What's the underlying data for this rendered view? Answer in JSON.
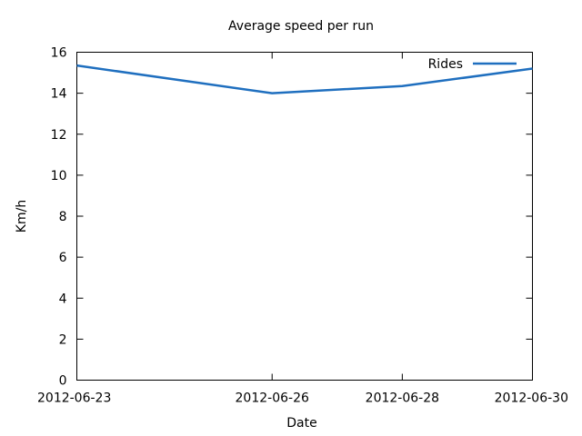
{
  "chart_data": {
    "type": "line",
    "title": "Average speed per run",
    "xlabel": "Date",
    "ylabel": "Km/h",
    "x_ticks": [
      "2012-06-23",
      "2012-06-26",
      "2012-06-28",
      "2012-06-30"
    ],
    "xlim": [
      "2012-06-23",
      "2012-06-30"
    ],
    "ylim": [
      0,
      16
    ],
    "y_ticks": [
      0,
      2,
      4,
      6,
      8,
      10,
      12,
      14,
      16
    ],
    "grid": false,
    "legend_position": "top-right",
    "series": [
      {
        "name": "Rides",
        "color": "#1f6fbf",
        "points": [
          {
            "x": "2012-06-23",
            "y": 15.35
          },
          {
            "x": "2012-06-26",
            "y": 14.0
          },
          {
            "x": "2012-06-28",
            "y": 14.35
          },
          {
            "x": "2012-06-30",
            "y": 15.2
          }
        ]
      }
    ]
  }
}
